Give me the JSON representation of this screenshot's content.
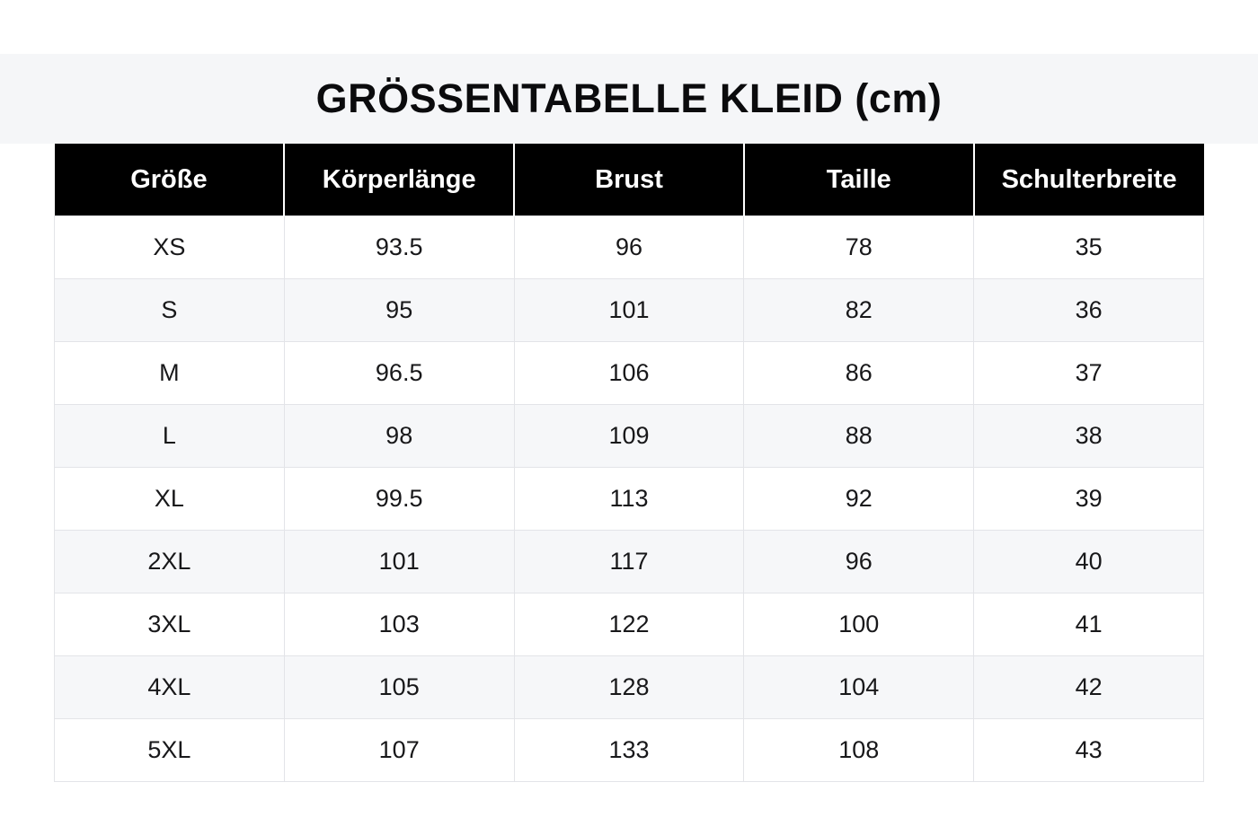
{
  "title": "GRÖSSENTABELLE KLEID (cm)",
  "colors": {
    "title_band_bg": "#f5f6f8",
    "header_bg": "#000000",
    "header_text": "#ffffff",
    "row_alt_bg": "#f6f7f9",
    "border": "#e3e4e8",
    "body_text": "#18181a"
  },
  "table": {
    "columns": [
      "Größe",
      "Körperlänge",
      "Brust",
      "Taille",
      "Schulterbreite"
    ],
    "rows": [
      {
        "size": "XS",
        "values": [
          "93.5",
          "96",
          "78",
          "35"
        ]
      },
      {
        "size": "S",
        "values": [
          "95",
          "101",
          "82",
          "36"
        ]
      },
      {
        "size": "M",
        "values": [
          "96.5",
          "106",
          "86",
          "37"
        ]
      },
      {
        "size": "L",
        "values": [
          "98",
          "109",
          "88",
          "38"
        ]
      },
      {
        "size": "XL",
        "values": [
          "99.5",
          "113",
          "92",
          "39"
        ]
      },
      {
        "size": "2XL",
        "values": [
          "101",
          "117",
          "96",
          "40"
        ]
      },
      {
        "size": "3XL",
        "values": [
          "103",
          "122",
          "100",
          "41"
        ]
      },
      {
        "size": "4XL",
        "values": [
          "105",
          "128",
          "104",
          "42"
        ]
      },
      {
        "size": "5XL",
        "values": [
          "107",
          "133",
          "108",
          "43"
        ]
      }
    ]
  },
  "chart_data": {
    "type": "table",
    "title": "GRÖSSENTABELLE KLEID (cm)",
    "columns": [
      "Größe",
      "Körperlänge",
      "Brust",
      "Taille",
      "Schulterbreite"
    ],
    "rows": [
      [
        "XS",
        93.5,
        96,
        78,
        35
      ],
      [
        "S",
        95,
        101,
        82,
        36
      ],
      [
        "M",
        96.5,
        106,
        86,
        37
      ],
      [
        "L",
        98,
        109,
        88,
        38
      ],
      [
        "XL",
        99.5,
        113,
        92,
        39
      ],
      [
        "2XL",
        101,
        117,
        96,
        40
      ],
      [
        "3XL",
        103,
        122,
        100,
        41
      ],
      [
        "4XL",
        105,
        128,
        104,
        42
      ],
      [
        "5XL",
        107,
        133,
        108,
        43
      ]
    ],
    "units": "cm"
  }
}
